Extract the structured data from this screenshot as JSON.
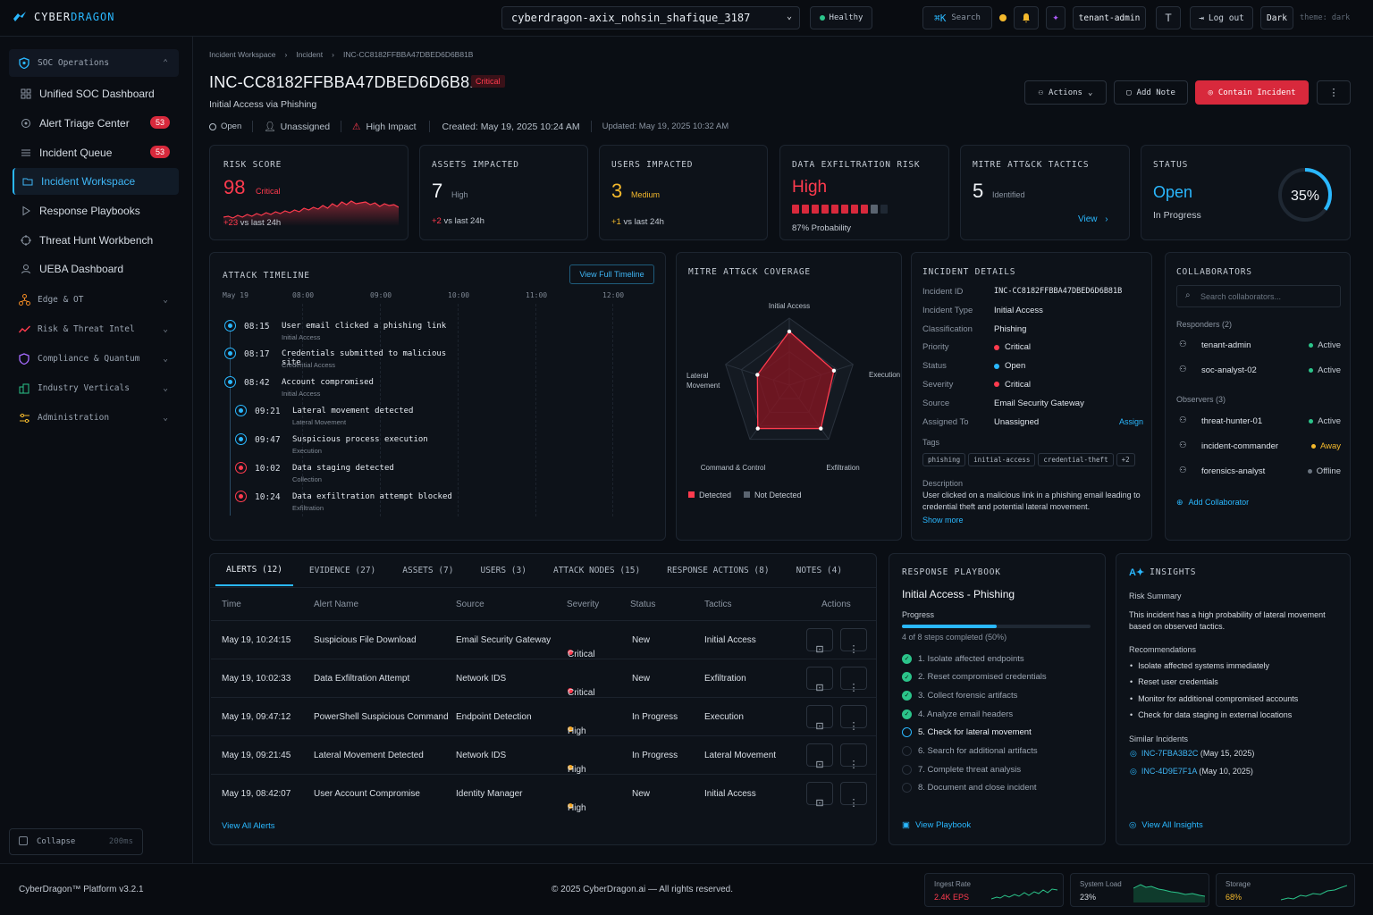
{
  "brand": {
    "part1": "CYBER",
    "part2": "DRAGON"
  },
  "topbar": {
    "tenant_select": "cyberdragon-axix_nohsin_shafique_3187",
    "health": "Healthy",
    "search_key": "⌘K",
    "search_label": "Search",
    "tenant_user": "tenant-admin",
    "logout": "Log out",
    "theme_btn": "Dark",
    "theme_text": "theme: dark"
  },
  "sidebar": {
    "groups": [
      {
        "label": "SOC Operations"
      },
      {
        "label": "Edge & OT"
      },
      {
        "label": "Risk & Threat Intel"
      },
      {
        "label": "Compliance & Quantum"
      },
      {
        "label": "Industry Verticals"
      },
      {
        "label": "Administration"
      }
    ],
    "items": [
      {
        "label": "Unified SOC Dashboard"
      },
      {
        "label": "Alert Triage Center",
        "badge": "53"
      },
      {
        "label": "Incident Queue",
        "badge": "53"
      },
      {
        "label": "Incident Workspace"
      },
      {
        "label": "Response Playbooks"
      },
      {
        "label": "Threat Hunt Workbench"
      },
      {
        "label": "UEBA Dashboard"
      }
    ],
    "collapse": "Collapse",
    "collapse_ms": "200ms"
  },
  "breadcrumb": [
    "Incident Workspace",
    "Incident",
    "INC-CC8182FFBBA47DBED6D6B81B"
  ],
  "incident": {
    "id": "INC-CC8182FFBBA47DBED6D6B81B",
    "severity_badge": "Critical",
    "subtitle": "Initial Access via Phishing",
    "state": "Open",
    "assignee": "Unassigned",
    "impact": "High Impact",
    "created": "Created: May 19, 2025 10:24 AM",
    "updated": "Updated: May 19, 2025 10:32 AM"
  },
  "actions": {
    "actions": "Actions",
    "add_note": "Add Note",
    "contain": "Contain Incident"
  },
  "kpis": {
    "risk": {
      "label": "RISK SCORE",
      "value": "98",
      "level": "Critical",
      "delta": "+23",
      "delta_text": "vs last 24h"
    },
    "assets": {
      "label": "ASSETS IMPACTED",
      "value": "7",
      "level": "High",
      "delta": "+2",
      "delta_text": "vs last 24h"
    },
    "users": {
      "label": "USERS IMPACTED",
      "value": "3",
      "level": "Medium",
      "delta": "+1",
      "delta_text": "vs last 24h"
    },
    "exfil": {
      "label": "DATA EXFILTRATION RISK",
      "value": "High",
      "probability": "87% Probability",
      "bars_filled": 8,
      "bars_total": 10
    },
    "mitre": {
      "label": "MITRE ATT&CK TACTICS",
      "value": "5",
      "text": "Identified",
      "link": "View"
    },
    "status": {
      "label": "STATUS",
      "value": "Open",
      "text": "In Progress",
      "percent": "35%",
      "progress": 0.35
    }
  },
  "timeline": {
    "title": "ATTACK TIMELINE",
    "button": "View Full Timeline",
    "axis": [
      "May 19",
      "08:00",
      "09:00",
      "10:00",
      "11:00",
      "12:00"
    ],
    "events": [
      {
        "time": "08:15",
        "name": "User email clicked a phishing link",
        "tactic": "Initial Access"
      },
      {
        "time": "08:17",
        "name": "Credentials submitted to malicious site",
        "tactic": "Credential Access"
      },
      {
        "time": "08:42",
        "name": "Account compromised",
        "tactic": "Initial Access"
      },
      {
        "time": "09:21",
        "name": "Lateral movement detected",
        "tactic": "Lateral Movement"
      },
      {
        "time": "09:47",
        "name": "Suspicious process execution",
        "tactic": "Execution"
      },
      {
        "time": "10:02",
        "name": "Data staging detected",
        "tactic": "Collection"
      },
      {
        "time": "10:24",
        "name": "Data exfiltration attempt blocked",
        "tactic": "Exfiltration"
      }
    ]
  },
  "coverage": {
    "title": "MITRE ATT&CK COVERAGE",
    "axes": [
      "Initial Access",
      "Execution",
      "Exfiltration",
      "Command & Control",
      "Lateral Movement"
    ],
    "values": [
      0.8,
      0.7,
      0.8,
      0.8,
      0.5
    ],
    "legend_detected": "Detected",
    "legend_not": "Not Detected"
  },
  "details": {
    "title": "INCIDENT DETAILS",
    "rows": [
      {
        "k": "Incident ID",
        "v": "INC-CC8182FFBBA47DBED6D6B81B"
      },
      {
        "k": "Incident Type",
        "v": "Initial Access"
      },
      {
        "k": "Classification",
        "v": "Phishing"
      },
      {
        "k": "Priority",
        "v": "Critical"
      },
      {
        "k": "Status",
        "v": "Open"
      },
      {
        "k": "Severity",
        "v": "Critical"
      },
      {
        "k": "Source",
        "v": "Email Security Gateway"
      },
      {
        "k": "Assigned To",
        "v": "Unassigned"
      }
    ],
    "assign": "Assign",
    "tags_label": "Tags",
    "tags": [
      "phishing",
      "initial-access",
      "credential-theft",
      "+2"
    ],
    "desc_label": "Description",
    "desc": "User clicked on a malicious link in a phishing email leading to credential theft and potential lateral movement.",
    "show_more": "Show more"
  },
  "collab": {
    "title": "COLLABORATORS",
    "search_ph": "Search collaborators...",
    "responders_label": "Responders (2)",
    "observers_label": "Observers (3)",
    "people": [
      {
        "name": "tenant-admin",
        "status": "Active"
      },
      {
        "name": "soc-analyst-02",
        "status": "Active"
      },
      {
        "name": "threat-hunter-01",
        "status": "Active"
      },
      {
        "name": "incident-commander",
        "status": "Away"
      },
      {
        "name": "forensics-analyst",
        "status": "Offline"
      }
    ],
    "add": "Add Collaborator"
  },
  "tabs": [
    "ALERTS (12)",
    "EVIDENCE (27)",
    "ASSETS (7)",
    "USERS (3)",
    "ATTACK NODES (15)",
    "RESPONSE ACTIONS (8)",
    "NOTES (4)"
  ],
  "table": {
    "headers": [
      "Time",
      "Alert Name",
      "Source",
      "Severity",
      "Status",
      "Tactics",
      "Actions"
    ],
    "rows": [
      {
        "time": "May 19, 10:24:15",
        "name": "Suspicious File Download",
        "source": "Email Security Gateway",
        "sev": "Critical",
        "status": "New",
        "tactic": "Initial Access"
      },
      {
        "time": "May 19, 10:02:33",
        "name": "Data Exfiltration Attempt",
        "source": "Network IDS",
        "sev": "Critical",
        "status": "New",
        "tactic": "Exfiltration"
      },
      {
        "time": "May 19, 09:47:12",
        "name": "PowerShell Suspicious Command",
        "source": "Endpoint Detection",
        "sev": "High",
        "status": "In Progress",
        "tactic": "Execution"
      },
      {
        "time": "May 19, 09:21:45",
        "name": "Lateral Movement Detected",
        "source": "Network IDS",
        "sev": "High",
        "status": "In Progress",
        "tactic": "Lateral Movement"
      },
      {
        "time": "May 19, 08:42:07",
        "name": "User Account Compromise",
        "source": "Identity Manager",
        "sev": "High",
        "status": "New",
        "tactic": "Initial Access"
      }
    ],
    "view_all": "View All Alerts"
  },
  "playbook": {
    "title": "RESPONSE PLAYBOOK",
    "name": "Initial Access - Phishing",
    "progress_label": "Progress",
    "progress": 0.5,
    "progress_text": "4 of 8 steps completed (50%)",
    "steps": [
      "1. Isolate affected endpoints",
      "2. Reset compromised credentials",
      "3. Collect forensic artifacts",
      "4. Analyze email headers",
      "5. Check for lateral movement",
      "6. Search for additional artifacts",
      "7. Complete threat analysis",
      "8. Document and close incident"
    ],
    "view": "View Playbook"
  },
  "insights": {
    "title": "INSIGHTS",
    "risk_label": "Risk Summary",
    "risk_text": "This incident has a high probability of lateral movement based on observed tactics.",
    "rec_label": "Recommendations",
    "recs": [
      "Isolate affected systems immediately",
      "Reset user credentials",
      "Monitor for additional compromised accounts",
      "Check for data staging in external locations"
    ],
    "similar_label": "Similar Incidents",
    "similar": [
      {
        "id": "INC-7FBA3B2C",
        "date": "(May 15, 2025)"
      },
      {
        "id": "INC-4D9E7F1A",
        "date": "(May 10, 2025)"
      }
    ],
    "view": "View All Insights"
  },
  "footer": {
    "version": "CyberDragon™ Platform v3.2.1",
    "copyright": "© 2025 CyberDragon.ai — All rights reserved.",
    "metrics": [
      {
        "label": "Ingest Rate",
        "value": "2.4K EPS"
      },
      {
        "label": "System Load",
        "value": "23%"
      },
      {
        "label": "Storage",
        "value": "68%"
      }
    ]
  }
}
